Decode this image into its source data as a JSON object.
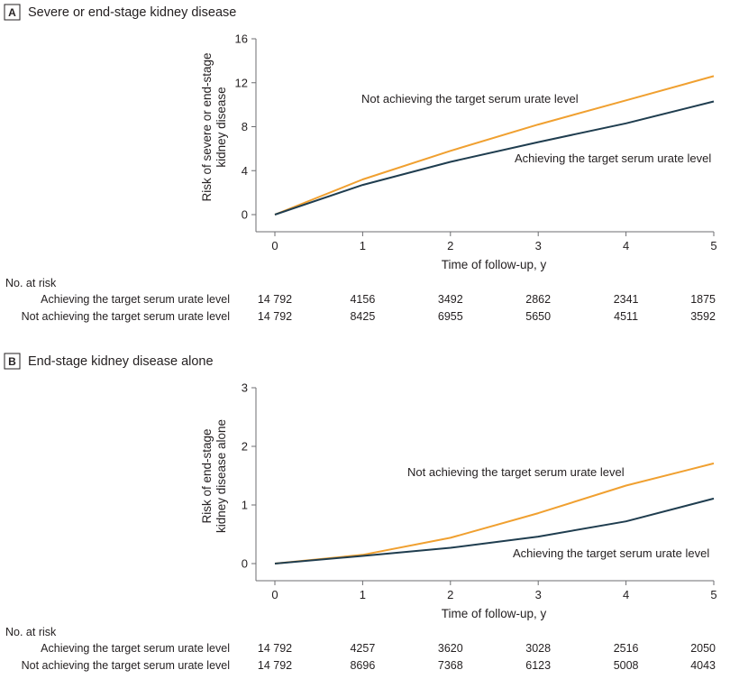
{
  "colors": {
    "achieving": "#1f3d4f",
    "not_achieving": "#f0a030",
    "axis": "#6d6e71"
  },
  "chart_data": [
    {
      "type": "line",
      "panel_label": "A",
      "title": "Severe or end-stage kidney disease",
      "xlabel": "Time of follow-up, y",
      "ylabel_lines": [
        "Risk of severe or end-stage",
        "kidney disease"
      ],
      "xlim": [
        0,
        5
      ],
      "ylim": [
        0,
        16
      ],
      "xticks": [
        0,
        1,
        2,
        3,
        4,
        5
      ],
      "yticks": [
        0,
        4,
        8,
        12,
        16
      ],
      "grid": false,
      "series": [
        {
          "name": "Not achieving the target serum urate level",
          "color": "#f0a030",
          "x": [
            0,
            1,
            2,
            3,
            4,
            5
          ],
          "y": [
            0,
            3.2,
            5.8,
            8.2,
            10.4,
            12.6
          ]
        },
        {
          "name": "Achieving the target serum urate level",
          "color": "#1f3d4f",
          "x": [
            0,
            1,
            2,
            3,
            4,
            5
          ],
          "y": [
            0,
            2.7,
            4.8,
            6.6,
            8.3,
            10.3
          ]
        }
      ],
      "series_label_order": [
        0,
        1
      ],
      "risk_table": {
        "header": "No. at risk",
        "rows": [
          {
            "label": "Achieving the target serum urate level",
            "values": [
              "14 792",
              "4156",
              "3492",
              "2862",
              "2341",
              "1875"
            ]
          },
          {
            "label": "Not achieving the target serum urate level",
            "values": [
              "14 792",
              "8425",
              "6955",
              "5650",
              "4511",
              "3592"
            ]
          }
        ]
      }
    },
    {
      "type": "line",
      "panel_label": "B",
      "title": "End-stage kidney disease alone",
      "xlabel": "Time of follow-up, y",
      "ylabel_lines": [
        "Risk of end-stage",
        "kidney disease alone"
      ],
      "xlim": [
        0,
        5
      ],
      "ylim": [
        0,
        3
      ],
      "xticks": [
        0,
        1,
        2,
        3,
        4,
        5
      ],
      "yticks": [
        0,
        1,
        2,
        3
      ],
      "grid": false,
      "series": [
        {
          "name": "Not achieving the target serum urate level",
          "color": "#f0a030",
          "x": [
            0,
            1,
            2,
            3,
            4,
            5
          ],
          "y": [
            0,
            0.15,
            0.44,
            0.86,
            1.33,
            1.71
          ]
        },
        {
          "name": "Achieving the target serum urate level",
          "color": "#1f3d4f",
          "x": [
            0,
            1,
            2,
            3,
            4,
            5
          ],
          "y": [
            0,
            0.13,
            0.27,
            0.46,
            0.72,
            1.11
          ]
        }
      ],
      "risk_table": {
        "header": "No. at risk",
        "rows": [
          {
            "label": "Achieving the target serum urate level",
            "values": [
              "14 792",
              "4257",
              "3620",
              "3028",
              "2516",
              "2050"
            ]
          },
          {
            "label": "Not achieving the target serum urate level",
            "values": [
              "14 792",
              "8696",
              "7368",
              "6123",
              "5008",
              "4043"
            ]
          }
        ]
      }
    }
  ]
}
